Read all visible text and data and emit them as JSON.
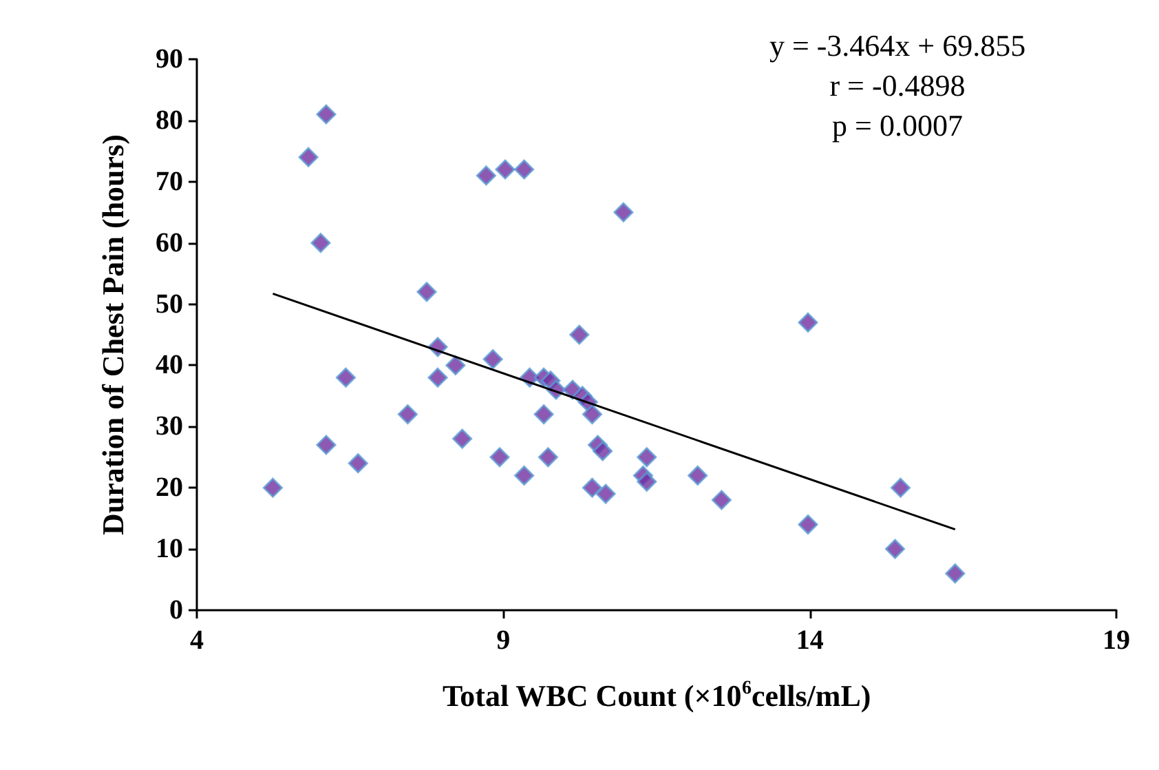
{
  "chart_data": {
    "type": "scatter",
    "xlabel": "Total WBC Count (×10$^{6}$cells/mL)",
    "ylabel": "Duration of Chest Pain (hours)",
    "annotations": [
      "y = -3.464x + 69.855",
      "r = -0.4898",
      "p = 0.0007"
    ],
    "series": [
      {
        "marker": "diamond",
        "color": "#7030a0",
        "x": [
          5.24,
          5.82,
          6.11,
          6.02,
          6.11,
          6.43,
          6.63,
          7.44,
          7.75,
          7.93,
          7.93,
          8.22,
          8.33,
          8.72,
          8.83,
          8.94,
          9.03,
          9.34,
          9.34,
          9.43,
          9.66,
          9.66,
          9.73,
          9.77,
          9.86,
          10.13,
          10.24,
          10.29,
          10.38,
          10.45,
          10.45,
          10.54,
          10.62,
          10.67,
          10.96,
          11.28,
          11.34,
          11.34,
          12.17,
          12.56,
          13.97,
          13.97,
          15.39,
          15.48,
          16.37
        ],
        "values": [
          20,
          74,
          81,
          60,
          27,
          38,
          24,
          32,
          52,
          43,
          38,
          40,
          28,
          71,
          41,
          25,
          72,
          72,
          22,
          38,
          38,
          32,
          25,
          37.5,
          36,
          36,
          45,
          35,
          34,
          32,
          20,
          27,
          26,
          19,
          65,
          22,
          25,
          21,
          22,
          18,
          14,
          47,
          10,
          20,
          6
        ]
      },
      {
        "type": "line",
        "marker": "none",
        "color": "#000000",
        "x": [
          5.24,
          16.37
        ],
        "values": [
          51.7,
          13.2
        ]
      }
    ],
    "xlim": [
      4,
      19
    ],
    "xticks": [
      4,
      9,
      14,
      19
    ],
    "ylim": [
      0,
      90
    ],
    "yticks": [
      0,
      10,
      20,
      30,
      40,
      50,
      60,
      70,
      80,
      90
    ],
    "grid": false,
    "line_style": "solid"
  }
}
